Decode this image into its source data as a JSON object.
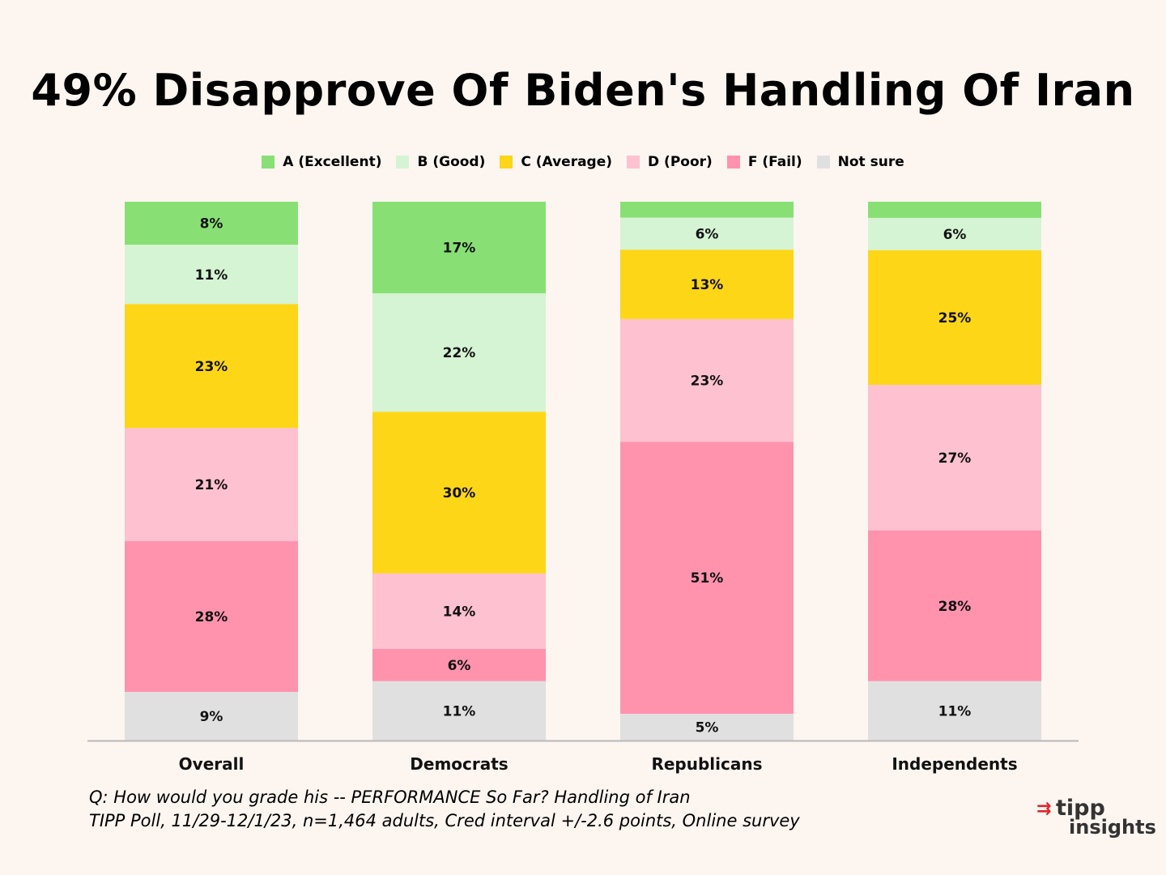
{
  "chart_data": {
    "type": "bar",
    "stacked": true,
    "title": "49% Disapprove Of Biden's Handling Of Iran",
    "categories": [
      "Overall",
      "Democrats",
      "Republicans",
      "Independents"
    ],
    "series": [
      {
        "name": "A (Excellent)",
        "color": "#88e075",
        "values": [
          8,
          17,
          3,
          3
        ],
        "labels": [
          "8%",
          "17%",
          "",
          ""
        ]
      },
      {
        "name": "B (Good)",
        "color": "#d5f4d3",
        "values": [
          11,
          22,
          6,
          6
        ],
        "labels": [
          "11%",
          "22%",
          "6%",
          "6%"
        ]
      },
      {
        "name": "C (Average)",
        "color": "#fdd617",
        "values": [
          23,
          30,
          13,
          25
        ],
        "labels": [
          "23%",
          "30%",
          "13%",
          "25%"
        ]
      },
      {
        "name": "D (Poor)",
        "color": "#fec1cf",
        "values": [
          21,
          14,
          23,
          27
        ],
        "labels": [
          "21%",
          "14%",
          "23%",
          "27%"
        ]
      },
      {
        "name": "F (Fail)",
        "color": "#ff93ae",
        "values": [
          28,
          6,
          51,
          28
        ],
        "labels": [
          "28%",
          "6%",
          "51%",
          "28%"
        ]
      },
      {
        "name": "Not sure",
        "color": "#e0e0e0",
        "values": [
          9,
          11,
          5,
          11
        ],
        "labels": [
          "9%",
          "11%",
          "5%",
          "11%"
        ]
      }
    ],
    "xlabel": "",
    "ylabel": "",
    "ylim": [
      0,
      100
    ],
    "legend_position": "top-center",
    "grid": false
  },
  "footnote": {
    "line1": "Q:  How would you grade his -- PERFORMANCE So Far?  Handling of Iran",
    "line2": "TIPP Poll, 11/29-12/1/23, n=1,464 adults, Cred interval +/-2.6 points, Online survey"
  },
  "logo": {
    "line1": "tipp",
    "line2": "insights",
    "arrow": "⇉",
    "accent_color": "#e0282c"
  }
}
